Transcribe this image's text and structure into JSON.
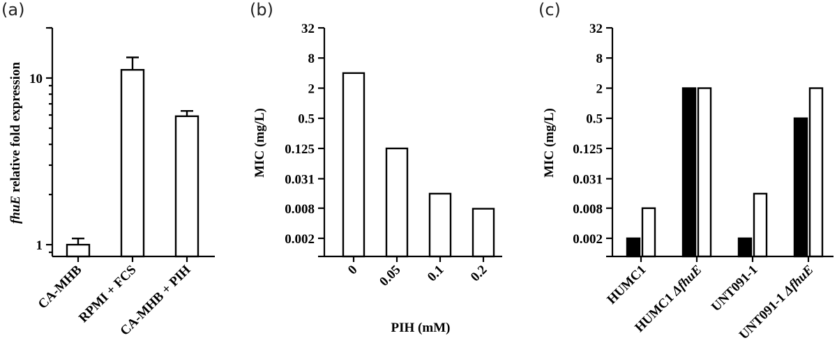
{
  "chart_data": [
    {
      "id": "a",
      "panel_label": "(a)",
      "type": "bar",
      "yscale": "log",
      "ylim": [
        0.85,
        20
      ],
      "ylabel_italic": "fhuE",
      "ylabel_rest": " relative fold expression",
      "xlabel": "",
      "yticks": [
        1,
        10
      ],
      "ytick_labels": [
        "1",
        "10"
      ],
      "categories": [
        "CA-MHB",
        "RPMI + FCS",
        "CA-MHB + PIH"
      ],
      "values": [
        1.0,
        11.2,
        5.9
      ],
      "errors": [
        0.09,
        2.1,
        0.45
      ]
    },
    {
      "id": "b",
      "panel_label": "(b)",
      "type": "bar",
      "yscale": "log2",
      "ylim": [
        0.001,
        32
      ],
      "ylabel": "MIC (mg/L)",
      "xlabel": "PIH (mM)",
      "yticks": [
        0.002,
        0.008,
        0.031,
        0.125,
        0.5,
        2,
        8,
        32
      ],
      "ytick_labels": [
        "0.002",
        "0.008",
        "0.031",
        "0.125",
        "0.5",
        "2",
        "8",
        "32"
      ],
      "categories": [
        "0",
        "0.05",
        "0.1",
        "0.2"
      ],
      "values": [
        4,
        0.125,
        0.0156,
        0.0078
      ]
    },
    {
      "id": "c",
      "panel_label": "(c)",
      "type": "bar",
      "yscale": "log2",
      "ylim": [
        0.001,
        32
      ],
      "ylabel": "MIC (mg/L)",
      "xlabel": "",
      "yticks": [
        0.002,
        0.008,
        0.031,
        0.125,
        0.5,
        2,
        8,
        32
      ],
      "ytick_labels": [
        "0.002",
        "0.008",
        "0.031",
        "0.125",
        "0.5",
        "2",
        "8",
        "32"
      ],
      "categories": [
        {
          "main": "HUMC1",
          "delta": "",
          "gene": ""
        },
        {
          "main": "HUMC1 ",
          "delta": "Δ",
          "gene": "fhuE"
        },
        {
          "main": "UNT091-1",
          "delta": "",
          "gene": ""
        },
        {
          "main": "UNT091-1 ",
          "delta": "Δ",
          "gene": "fhuE"
        }
      ],
      "series": [
        {
          "values": [
            0.002,
            2,
            0.002,
            0.5
          ]
        },
        {
          "values": [
            0.008,
            2,
            0.0156,
            2
          ]
        }
      ],
      "colors": [
        "#000000",
        "#ffffff"
      ]
    }
  ]
}
